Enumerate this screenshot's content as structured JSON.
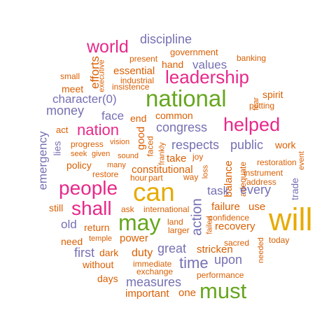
{
  "palette": {
    "orange": "#d95f02",
    "purple": "#7570b3",
    "pink": "#e7298a",
    "green": "#66a61e",
    "gold": "#e6ab02"
  },
  "words": [
    {
      "text": "discipline",
      "color": "purple"
    },
    {
      "text": "world",
      "color": "pink"
    },
    {
      "text": "present",
      "color": "orange"
    },
    {
      "text": "government",
      "color": "orange"
    },
    {
      "text": "banking",
      "color": "orange"
    },
    {
      "text": "efforts",
      "color": "orange"
    },
    {
      "text": "executive",
      "color": "orange"
    },
    {
      "text": "hand",
      "color": "orange"
    },
    {
      "text": "values",
      "color": "purple"
    },
    {
      "text": "small",
      "color": "orange"
    },
    {
      "text": "essential",
      "color": "orange"
    },
    {
      "text": "leadership",
      "color": "pink"
    },
    {
      "text": "industrial",
      "color": "orange"
    },
    {
      "text": "meet",
      "color": "orange"
    },
    {
      "text": "insistence",
      "color": "orange"
    },
    {
      "text": "spirit",
      "color": "orange"
    },
    {
      "text": "character(0)",
      "color": "purple"
    },
    {
      "text": "national",
      "color": "green"
    },
    {
      "text": "fear",
      "color": "orange"
    },
    {
      "text": "putting",
      "color": "orange"
    },
    {
      "text": "money",
      "color": "purple"
    },
    {
      "text": "face",
      "color": "purple"
    },
    {
      "text": "end",
      "color": "orange"
    },
    {
      "text": "common",
      "color": "orange"
    },
    {
      "text": "helped",
      "color": "pink"
    },
    {
      "text": "act",
      "color": "orange"
    },
    {
      "text": "nation",
      "color": "pink"
    },
    {
      "text": "good",
      "color": "orange"
    },
    {
      "text": "congress",
      "color": "purple"
    },
    {
      "text": "emergency",
      "color": "purple"
    },
    {
      "text": "lies",
      "color": "purple"
    },
    {
      "text": "progress",
      "color": "orange"
    },
    {
      "text": "vision",
      "color": "orange"
    },
    {
      "text": "faced",
      "color": "orange"
    },
    {
      "text": "respects",
      "color": "purple"
    },
    {
      "text": "public",
      "color": "purple"
    },
    {
      "text": "work",
      "color": "orange"
    },
    {
      "text": "seek",
      "color": "orange"
    },
    {
      "text": "given",
      "color": "orange"
    },
    {
      "text": "sound",
      "color": "orange"
    },
    {
      "text": "frankly",
      "color": "orange"
    },
    {
      "text": "joy",
      "color": "orange"
    },
    {
      "text": "take",
      "color": "orange"
    },
    {
      "text": "restoration",
      "color": "orange"
    },
    {
      "text": "policy",
      "color": "orange"
    },
    {
      "text": "many",
      "color": "orange"
    },
    {
      "text": "loss",
      "color": "orange"
    },
    {
      "text": "instrument",
      "color": "orange"
    },
    {
      "text": "event",
      "color": "orange"
    },
    {
      "text": "restore",
      "color": "orange"
    },
    {
      "text": "constitutional",
      "color": "orange"
    },
    {
      "text": "balance",
      "color": "orange"
    },
    {
      "text": "adequate",
      "color": "orange"
    },
    {
      "text": "hour",
      "color": "orange"
    },
    {
      "text": "part",
      "color": "orange"
    },
    {
      "text": "way",
      "color": "orange"
    },
    {
      "text": "address",
      "color": "orange"
    },
    {
      "text": "trade",
      "color": "purple"
    },
    {
      "text": "people",
      "color": "pink"
    },
    {
      "text": "can",
      "color": "gold"
    },
    {
      "text": "task",
      "color": "purple"
    },
    {
      "text": "every",
      "color": "purple"
    },
    {
      "text": "still",
      "color": "orange"
    },
    {
      "text": "shall",
      "color": "pink"
    },
    {
      "text": "ask",
      "color": "orange"
    },
    {
      "text": "international",
      "color": "orange"
    },
    {
      "text": "failure",
      "color": "orange"
    },
    {
      "text": "use",
      "color": "orange"
    },
    {
      "text": "will",
      "color": "gold"
    },
    {
      "text": "old",
      "color": "purple"
    },
    {
      "text": "may",
      "color": "green"
    },
    {
      "text": "return",
      "color": "orange"
    },
    {
      "text": "land",
      "color": "orange"
    },
    {
      "text": "larger",
      "color": "orange"
    },
    {
      "text": "action",
      "color": "purple"
    },
    {
      "text": "failed",
      "color": "orange"
    },
    {
      "text": "confidence",
      "color": "orange"
    },
    {
      "text": "recovery",
      "color": "orange"
    },
    {
      "text": "need",
      "color": "orange"
    },
    {
      "text": "temple",
      "color": "orange"
    },
    {
      "text": "power",
      "color": "orange"
    },
    {
      "text": "sacred",
      "color": "orange"
    },
    {
      "text": "today",
      "color": "orange"
    },
    {
      "text": "first",
      "color": "purple"
    },
    {
      "text": "dark",
      "color": "orange"
    },
    {
      "text": "duty",
      "color": "orange"
    },
    {
      "text": "great",
      "color": "purple"
    },
    {
      "text": "stricken",
      "color": "orange"
    },
    {
      "text": "needed",
      "color": "orange"
    },
    {
      "text": "without",
      "color": "orange"
    },
    {
      "text": "immediate",
      "color": "orange"
    },
    {
      "text": "time",
      "color": "purple"
    },
    {
      "text": "upon",
      "color": "purple"
    },
    {
      "text": "exchange",
      "color": "orange"
    },
    {
      "text": "days",
      "color": "orange"
    },
    {
      "text": "measures",
      "color": "purple"
    },
    {
      "text": "performance",
      "color": "orange"
    },
    {
      "text": "important",
      "color": "orange"
    },
    {
      "text": "one",
      "color": "orange"
    },
    {
      "text": "must",
      "color": "green"
    }
  ]
}
